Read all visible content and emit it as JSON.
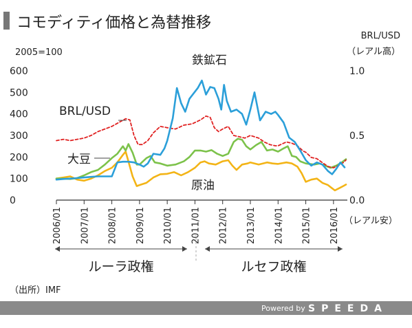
{
  "header": {
    "title": "コモディティ価格と為替推移"
  },
  "left_axis": {
    "unit_label": "2005=100"
  },
  "right_axis": {
    "label": "BRL/USD",
    "top_note": "（レアル高）",
    "bottom_note": "（レアル安）"
  },
  "labels": {
    "brl": "BRL/USD",
    "iron": "鉄鉱石",
    "soy": "大豆",
    "oil": "原油"
  },
  "periods": {
    "lula": "ルーラ政権",
    "rousseff": "ルセフ政権"
  },
  "footer": {
    "source": "（出所）IMF",
    "powered": "Powered by",
    "brand": "SPEEDA"
  },
  "colors": {
    "iron": "#2b9fd9",
    "soy": "#7cc24a",
    "oil": "#f3b416",
    "brl": "#e02020",
    "footer_bar": "#8a8a8a"
  },
  "chart_data": {
    "type": "line",
    "x_tick_labels": [
      "2006/01",
      "2007/01",
      "2008/01",
      "2009/01",
      "2010/01",
      "2011/01",
      "2012/01",
      "2013/01",
      "2014/01",
      "2015/01",
      "2016/01"
    ],
    "x_range": [
      "2006-01",
      "2016-06"
    ],
    "y_left": {
      "ylim": [
        0,
        600
      ],
      "ticks": [
        0,
        100,
        200,
        300,
        400,
        500,
        600
      ]
    },
    "y_right": {
      "ylim": [
        0.0,
        1.0
      ],
      "ticks": [
        "0.0",
        "0.5",
        "1.0"
      ]
    },
    "series": [
      {
        "name": "鉄鉱石",
        "axis": "left",
        "color_key": "iron",
        "points": [
          [
            2006.0,
            95
          ],
          [
            2006.25,
            98
          ],
          [
            2006.5,
            100
          ],
          [
            2006.75,
            102
          ],
          [
            2007.0,
            105
          ],
          [
            2007.25,
            108
          ],
          [
            2007.5,
            110
          ],
          [
            2007.75,
            110
          ],
          [
            2008.0,
            110
          ],
          [
            2008.2,
            175
          ],
          [
            2008.4,
            178
          ],
          [
            2008.6,
            178
          ],
          [
            2008.8,
            175
          ],
          [
            2009.0,
            165
          ],
          [
            2009.15,
            155
          ],
          [
            2009.3,
            170
          ],
          [
            2009.5,
            215
          ],
          [
            2009.75,
            210
          ],
          [
            2009.9,
            240
          ],
          [
            2010.0,
            275
          ],
          [
            2010.2,
            380
          ],
          [
            2010.35,
            520
          ],
          [
            2010.5,
            450
          ],
          [
            2010.65,
            410
          ],
          [
            2010.8,
            470
          ],
          [
            2010.95,
            495
          ],
          [
            2011.1,
            520
          ],
          [
            2011.25,
            555
          ],
          [
            2011.4,
            490
          ],
          [
            2011.55,
            525
          ],
          [
            2011.7,
            520
          ],
          [
            2011.85,
            470
          ],
          [
            2011.95,
            420
          ],
          [
            2012.05,
            535
          ],
          [
            2012.15,
            460
          ],
          [
            2012.3,
            410
          ],
          [
            2012.5,
            420
          ],
          [
            2012.7,
            400
          ],
          [
            2012.85,
            350
          ],
          [
            2013.0,
            420
          ],
          [
            2013.15,
            500
          ],
          [
            2013.35,
            370
          ],
          [
            2013.55,
            410
          ],
          [
            2013.75,
            400
          ],
          [
            2013.9,
            410
          ],
          [
            2014.0,
            395
          ],
          [
            2014.2,
            360
          ],
          [
            2014.4,
            290
          ],
          [
            2014.6,
            270
          ],
          [
            2014.8,
            230
          ],
          [
            2015.0,
            185
          ],
          [
            2015.2,
            160
          ],
          [
            2015.4,
            175
          ],
          [
            2015.6,
            165
          ],
          [
            2015.8,
            135
          ],
          [
            2015.95,
            120
          ],
          [
            2016.1,
            145
          ],
          [
            2016.25,
            175
          ],
          [
            2016.4,
            152
          ]
        ]
      },
      {
        "name": "大豆",
        "axis": "left",
        "color_key": "soy",
        "points": [
          [
            2006.0,
            100
          ],
          [
            2006.25,
            100
          ],
          [
            2006.5,
            98
          ],
          [
            2006.75,
            102
          ],
          [
            2007.0,
            115
          ],
          [
            2007.25,
            130
          ],
          [
            2007.5,
            140
          ],
          [
            2007.75,
            165
          ],
          [
            2008.0,
            195
          ],
          [
            2008.2,
            215
          ],
          [
            2008.4,
            250
          ],
          [
            2008.5,
            230
          ],
          [
            2008.6,
            260
          ],
          [
            2008.75,
            220
          ],
          [
            2008.9,
            165
          ],
          [
            2009.0,
            165
          ],
          [
            2009.25,
            195
          ],
          [
            2009.4,
            205
          ],
          [
            2009.55,
            175
          ],
          [
            2009.75,
            170
          ],
          [
            2010.0,
            160
          ],
          [
            2010.3,
            165
          ],
          [
            2010.6,
            180
          ],
          [
            2010.8,
            200
          ],
          [
            2011.0,
            230
          ],
          [
            2011.2,
            230
          ],
          [
            2011.4,
            225
          ],
          [
            2011.6,
            232
          ],
          [
            2011.8,
            215
          ],
          [
            2012.0,
            205
          ],
          [
            2012.2,
            215
          ],
          [
            2012.4,
            270
          ],
          [
            2012.55,
            285
          ],
          [
            2012.7,
            280
          ],
          [
            2012.85,
            250
          ],
          [
            2013.0,
            235
          ],
          [
            2013.2,
            255
          ],
          [
            2013.4,
            270
          ],
          [
            2013.6,
            230
          ],
          [
            2013.8,
            235
          ],
          [
            2014.0,
            225
          ],
          [
            2014.2,
            240
          ],
          [
            2014.35,
            250
          ],
          [
            2014.5,
            205
          ],
          [
            2014.65,
            200
          ],
          [
            2014.8,
            180
          ],
          [
            2015.0,
            170
          ],
          [
            2015.3,
            165
          ],
          [
            2015.5,
            170
          ],
          [
            2015.7,
            160
          ],
          [
            2015.9,
            150
          ],
          [
            2016.1,
            160
          ],
          [
            2016.3,
            175
          ],
          [
            2016.45,
            190
          ]
        ]
      },
      {
        "name": "原油",
        "axis": "left",
        "color_key": "oil",
        "points": [
          [
            2006.0,
            100
          ],
          [
            2006.25,
            105
          ],
          [
            2006.5,
            110
          ],
          [
            2006.75,
            95
          ],
          [
            2007.0,
            90
          ],
          [
            2007.25,
            100
          ],
          [
            2007.5,
            115
          ],
          [
            2007.75,
            135
          ],
          [
            2008.0,
            150
          ],
          [
            2008.2,
            175
          ],
          [
            2008.4,
            210
          ],
          [
            2008.5,
            225
          ],
          [
            2008.6,
            180
          ],
          [
            2008.75,
            110
          ],
          [
            2008.9,
            65
          ],
          [
            2009.0,
            70
          ],
          [
            2009.25,
            80
          ],
          [
            2009.5,
            105
          ],
          [
            2009.75,
            120
          ],
          [
            2010.0,
            122
          ],
          [
            2010.25,
            130
          ],
          [
            2010.5,
            115
          ],
          [
            2010.75,
            130
          ],
          [
            2011.0,
            150
          ],
          [
            2011.2,
            175
          ],
          [
            2011.35,
            180
          ],
          [
            2011.5,
            170
          ],
          [
            2011.75,
            165
          ],
          [
            2012.0,
            180
          ],
          [
            2012.2,
            185
          ],
          [
            2012.35,
            160
          ],
          [
            2012.5,
            140
          ],
          [
            2012.7,
            165
          ],
          [
            2012.9,
            170
          ],
          [
            2013.0,
            175
          ],
          [
            2013.3,
            165
          ],
          [
            2013.6,
            175
          ],
          [
            2013.8,
            170
          ],
          [
            2014.0,
            168
          ],
          [
            2014.3,
            175
          ],
          [
            2014.5,
            170
          ],
          [
            2014.7,
            155
          ],
          [
            2014.85,
            125
          ],
          [
            2015.0,
            85
          ],
          [
            2015.2,
            95
          ],
          [
            2015.4,
            100
          ],
          [
            2015.6,
            80
          ],
          [
            2015.8,
            70
          ],
          [
            2015.95,
            55
          ],
          [
            2016.05,
            45
          ],
          [
            2016.2,
            55
          ],
          [
            2016.35,
            65
          ],
          [
            2016.45,
            72
          ]
        ]
      },
      {
        "name": "BRL/USD",
        "axis": "right",
        "color_key": "brl",
        "dashed": true,
        "points": [
          [
            2006.0,
            0.46
          ],
          [
            2006.25,
            0.47
          ],
          [
            2006.5,
            0.46
          ],
          [
            2006.75,
            0.47
          ],
          [
            2007.0,
            0.48
          ],
          [
            2007.25,
            0.5
          ],
          [
            2007.5,
            0.53
          ],
          [
            2007.75,
            0.55
          ],
          [
            2008.0,
            0.57
          ],
          [
            2008.25,
            0.6
          ],
          [
            2008.5,
            0.63
          ],
          [
            2008.65,
            0.62
          ],
          [
            2008.8,
            0.5
          ],
          [
            2008.95,
            0.43
          ],
          [
            2009.1,
            0.43
          ],
          [
            2009.3,
            0.46
          ],
          [
            2009.5,
            0.52
          ],
          [
            2009.75,
            0.57
          ],
          [
            2010.0,
            0.56
          ],
          [
            2010.3,
            0.55
          ],
          [
            2010.6,
            0.58
          ],
          [
            2010.9,
            0.59
          ],
          [
            2011.0,
            0.6
          ],
          [
            2011.2,
            0.62
          ],
          [
            2011.4,
            0.65
          ],
          [
            2011.55,
            0.64
          ],
          [
            2011.7,
            0.56
          ],
          [
            2011.85,
            0.53
          ],
          [
            2012.0,
            0.55
          ],
          [
            2012.2,
            0.57
          ],
          [
            2012.4,
            0.5
          ],
          [
            2012.6,
            0.49
          ],
          [
            2012.8,
            0.48
          ],
          [
            2013.0,
            0.5
          ],
          [
            2013.3,
            0.48
          ],
          [
            2013.5,
            0.45
          ],
          [
            2013.7,
            0.43
          ],
          [
            2013.9,
            0.42
          ],
          [
            2014.0,
            0.42
          ],
          [
            2014.3,
            0.45
          ],
          [
            2014.5,
            0.44
          ],
          [
            2014.7,
            0.42
          ],
          [
            2014.9,
            0.38
          ],
          [
            2015.0,
            0.37
          ],
          [
            2015.2,
            0.33
          ],
          [
            2015.4,
            0.32
          ],
          [
            2015.6,
            0.29
          ],
          [
            2015.8,
            0.26
          ],
          [
            2016.0,
            0.25
          ],
          [
            2016.2,
            0.27
          ],
          [
            2016.35,
            0.29
          ],
          [
            2016.45,
            0.31
          ]
        ]
      }
    ]
  }
}
